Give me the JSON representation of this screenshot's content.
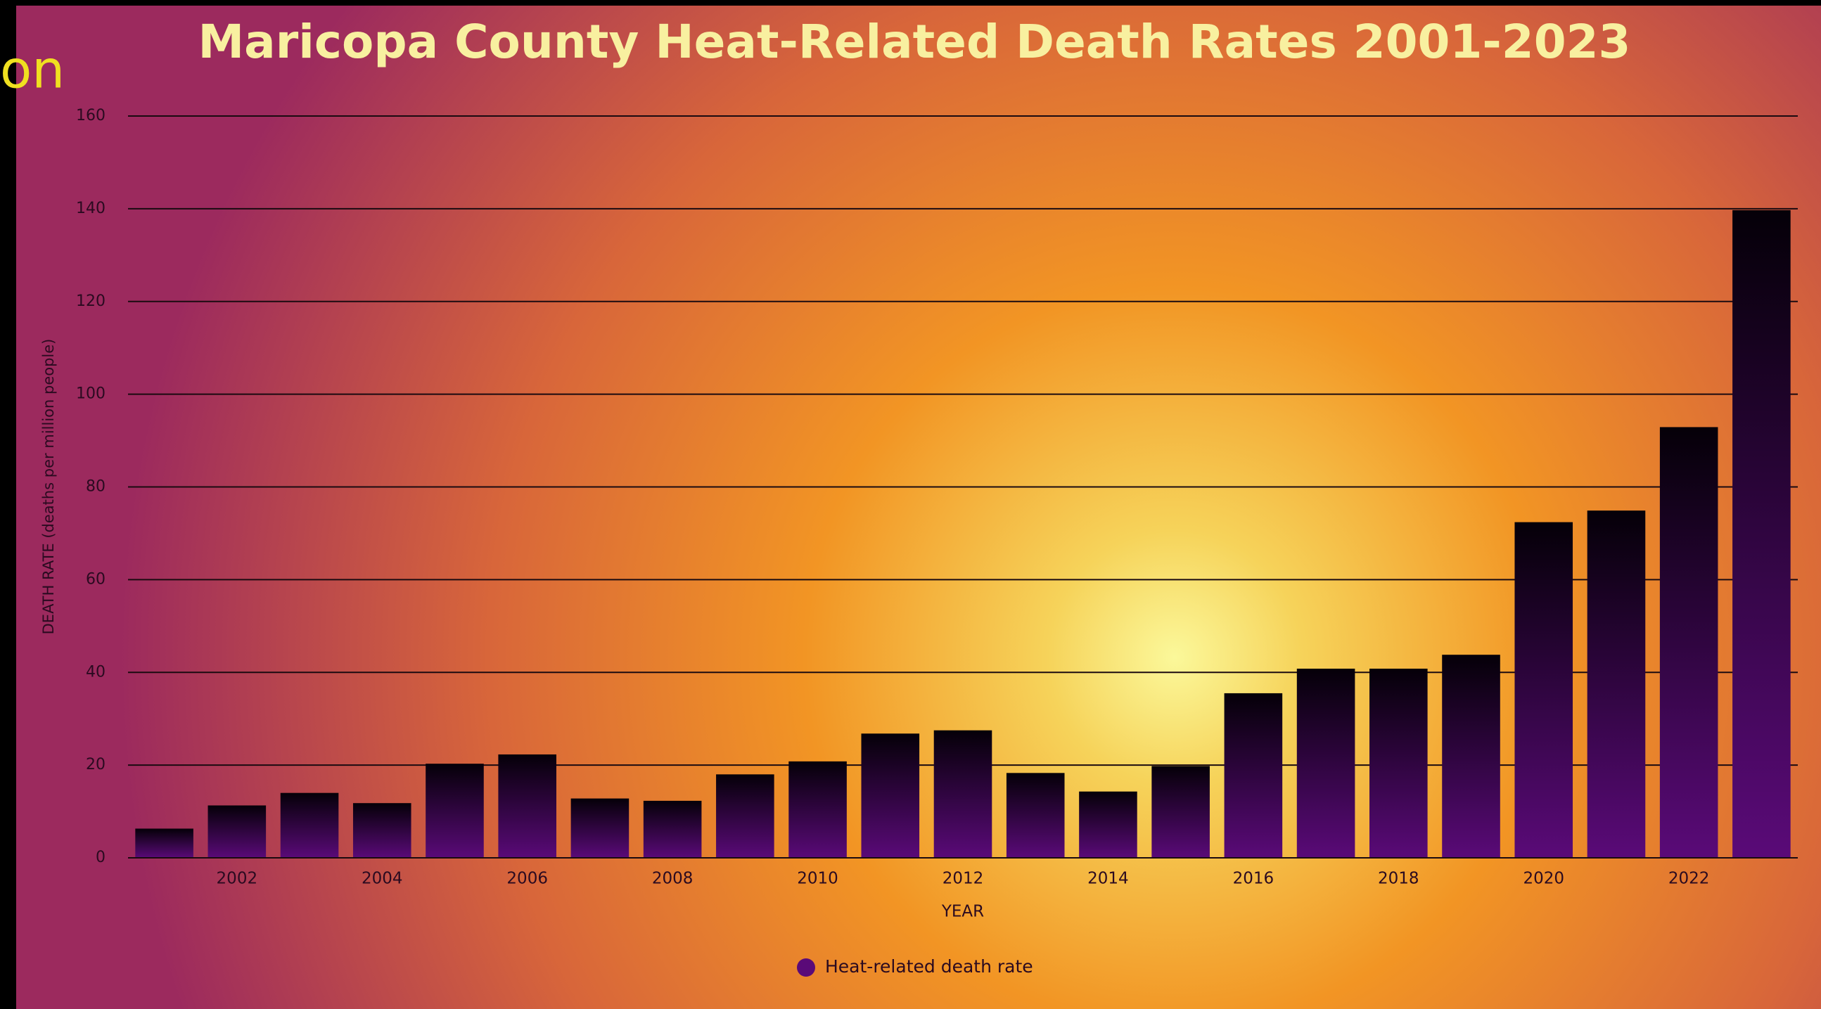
{
  "background_text": "on",
  "chart_data": {
    "type": "bar",
    "title": "Maricopa County Heat-Related Death Rates 2001-2023",
    "x_label": "YEAR",
    "y_label": "DEATH RATE (deaths per million people)",
    "categories": [
      null,
      "2002",
      null,
      "2004",
      null,
      "2006",
      null,
      "2008",
      null,
      "2010",
      null,
      "2012",
      null,
      "2014",
      null,
      "2016",
      null,
      "2018",
      null,
      "2020",
      null,
      "2022",
      null
    ],
    "series": [
      {
        "name": "Heat-related death rate",
        "color": "#5a0a78",
        "values": [
          6.3,
          11.3,
          14,
          11.8,
          20.3,
          22.3,
          12.8,
          12.3,
          18,
          20.8,
          26.8,
          27.5,
          18.3,
          14.3,
          19.8,
          35.5,
          40.8,
          40.8,
          43.8,
          72.4,
          74.9,
          92.9,
          139.7
        ]
      }
    ],
    "ylim": [
      0,
      160
    ],
    "yticks": [
      0,
      20,
      40,
      60,
      80,
      100,
      120,
      140,
      160
    ],
    "grid": true,
    "legend": "bottom"
  }
}
